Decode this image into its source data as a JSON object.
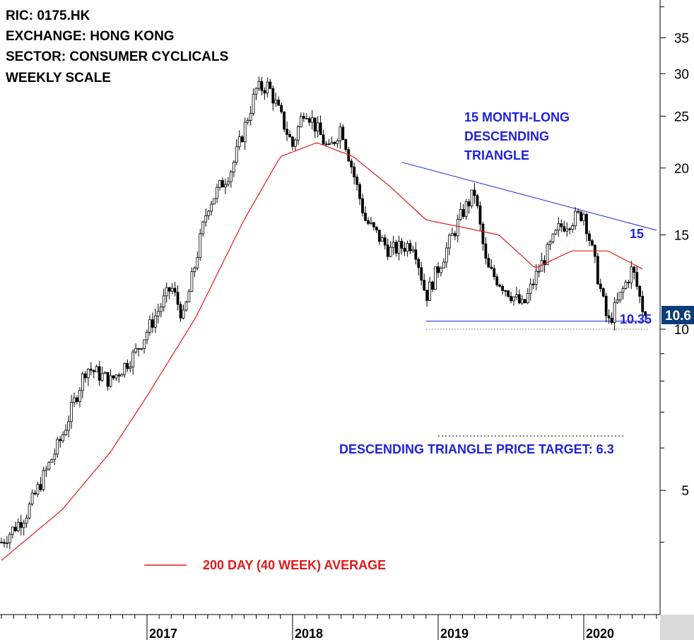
{
  "header": {
    "ric": "RIC: 0175.HK",
    "exchange": "EXCHANGE: HONG KONG",
    "sector": "SECTOR: CONSUMER CYCLICALS",
    "scale": "WEEKLY SCALE"
  },
  "annotations": {
    "pattern_line1": "15 MONTH-LONG",
    "pattern_line2": "DESCENDING",
    "pattern_line3": "TRIANGLE",
    "resistance_label": "15",
    "support_label": "10.35",
    "price_badge": "10.6",
    "target_label": "DESCENDING TRIANGLE PRICE TARGET: 6.3",
    "ma_legend": "200 DAY (40 WEEK) AVERAGE"
  },
  "colors": {
    "candle": "#000000",
    "moving_average": "#e01a1a",
    "trendlines": "#1f22d8",
    "annotation_text": "#1f22d8",
    "price_badge_bg": "#0a3d7a"
  },
  "chart_data": {
    "type": "candlestick",
    "scale": "log",
    "ylim": [
      3.2,
      44
    ],
    "y_ticks": [
      5,
      10,
      15,
      20,
      25,
      30,
      35
    ],
    "x_ticks": [
      "2017",
      "2018",
      "2019",
      "2020"
    ],
    "last_price": 10.6,
    "price_anchors": [
      {
        "t": "2016-01",
        "close": 4.0
      },
      {
        "t": "2016-03",
        "close": 4.5
      },
      {
        "t": "2016-06",
        "close": 6.3
      },
      {
        "t": "2016-08",
        "close": 8.5
      },
      {
        "t": "2016-10",
        "close": 8.0
      },
      {
        "t": "2016-12",
        "close": 9.0
      },
      {
        "t": "2017-03",
        "close": 12.0
      },
      {
        "t": "2017-04",
        "close": 10.5
      },
      {
        "t": "2017-06",
        "close": 17.0
      },
      {
        "t": "2017-08",
        "close": 20.0
      },
      {
        "t": "2017-10",
        "close": 28.0
      },
      {
        "t": "2017-11",
        "close": 28.5
      },
      {
        "t": "2018-01",
        "close": 22.0
      },
      {
        "t": "2018-02",
        "close": 26.0
      },
      {
        "t": "2018-04",
        "close": 21.5
      },
      {
        "t": "2018-05",
        "close": 24.0
      },
      {
        "t": "2018-07",
        "close": 16.0
      },
      {
        "t": "2018-09",
        "close": 14.0
      },
      {
        "t": "2018-11",
        "close": 14.5
      },
      {
        "t": "2018-12",
        "close": 11.5
      },
      {
        "t": "2019-01",
        "close": 13.0
      },
      {
        "t": "2019-03",
        "close": 16.5
      },
      {
        "t": "2019-04",
        "close": 18.0
      },
      {
        "t": "2019-05",
        "close": 13.0
      },
      {
        "t": "2019-08",
        "close": 11.0
      },
      {
        "t": "2019-09",
        "close": 12.5
      },
      {
        "t": "2019-11",
        "close": 15.5
      },
      {
        "t": "2020-01",
        "close": 16.5
      },
      {
        "t": "2020-02",
        "close": 13.0
      },
      {
        "t": "2020-03",
        "close": 10.2
      },
      {
        "t": "2020-05",
        "close": 13.0
      },
      {
        "t": "2020-06",
        "close": 10.6
      }
    ],
    "moving_average_40w_anchors": [
      {
        "t": "2016-01",
        "value": 3.7
      },
      {
        "t": "2016-06",
        "value": 4.6
      },
      {
        "t": "2016-10",
        "value": 5.9
      },
      {
        "t": "2017-01",
        "value": 7.5
      },
      {
        "t": "2017-05",
        "value": 10.5
      },
      {
        "t": "2017-09",
        "value": 16.0
      },
      {
        "t": "2017-12",
        "value": 21.0
      },
      {
        "t": "2018-03",
        "value": 22.3
      },
      {
        "t": "2018-06",
        "value": 21.0
      },
      {
        "t": "2018-09",
        "value": 18.5
      },
      {
        "t": "2018-12",
        "value": 16.0
      },
      {
        "t": "2019-03",
        "value": 15.5
      },
      {
        "t": "2019-06",
        "value": 15.0
      },
      {
        "t": "2019-09",
        "value": 13.0
      },
      {
        "t": "2019-12",
        "value": 14.0
      },
      {
        "t": "2020-03",
        "value": 14.0
      },
      {
        "t": "2020-06",
        "value": 12.9
      }
    ],
    "descending_trendline": [
      {
        "t": "2018-10",
        "value": 20.5
      },
      {
        "t": "2020-07",
        "value": 15.3
      }
    ],
    "support_line": {
      "value": 10.35,
      "from": "2018-12",
      "to": "2020-06"
    },
    "target_line": {
      "value": 6.3,
      "from": "2019-01",
      "to": "2020-04"
    }
  }
}
